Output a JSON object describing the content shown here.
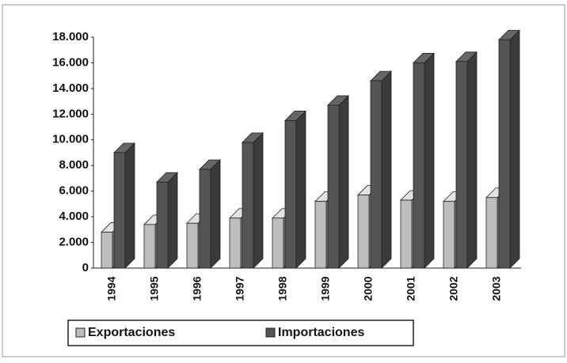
{
  "chart_data": {
    "type": "bar3d",
    "categories": [
      "1994",
      "1995",
      "1996",
      "1997",
      "1998",
      "1999",
      "2000",
      "2001",
      "2002",
      "2003"
    ],
    "series": [
      {
        "name": "Exportaciones",
        "color": "#bdbdbd",
        "values": [
          2800,
          3400,
          3500,
          3900,
          3900,
          5200,
          5700,
          5300,
          5200,
          5500
        ]
      },
      {
        "name": "Importaciones",
        "color": "#555555",
        "values": [
          9000,
          6700,
          7700,
          9800,
          11500,
          12700,
          14600,
          16000,
          16100,
          17800
        ]
      }
    ],
    "ylim": [
      0,
      18000
    ],
    "yticks": [
      0,
      {
        "value": 2000,
        "label": "2.000"
      },
      {
        "value": 4000,
        "label": "4.000"
      },
      {
        "value": 6000,
        "label": "6.000"
      },
      {
        "value": 8000,
        "label": "8.000"
      },
      {
        "value": 10000,
        "label": "10.000"
      },
      {
        "value": 12000,
        "label": "12.000"
      },
      {
        "value": 14000,
        "label": "14.000"
      },
      {
        "value": 16000,
        "label": "16.000"
      },
      {
        "value": 18000,
        "label": "18.000"
      }
    ],
    "legend": "bottom"
  }
}
